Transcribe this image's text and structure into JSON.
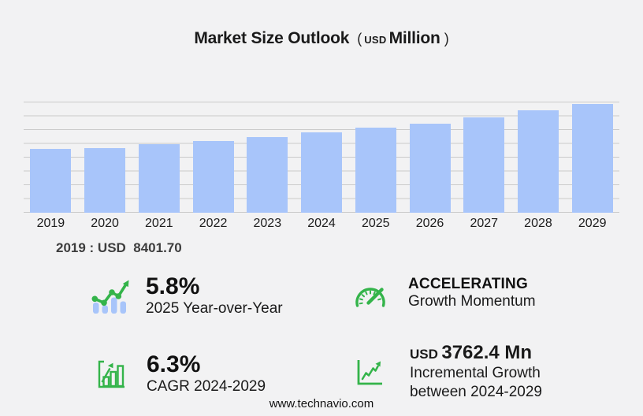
{
  "header": {
    "title": "Market Size Outlook",
    "unit_paren_open": "(",
    "unit_prefix": "USD",
    "unit": "Million",
    "unit_paren_close": ")"
  },
  "base_note": "2019 : USD  8401.70",
  "chart_data": {
    "type": "bar",
    "title": "Market Size Outlook (USD Million)",
    "unit": "USD Million",
    "categories": [
      "2019",
      "2020",
      "2021",
      "2022",
      "2023",
      "2024",
      "2025",
      "2026",
      "2027",
      "2028",
      "2029"
    ],
    "values": [
      8401.7,
      8500,
      8990,
      9450,
      9920,
      10530,
      11140,
      11750,
      12570,
      13460,
      14292
    ],
    "labeled_value_2019": "8401.70",
    "ylim": [
      0,
      14500
    ],
    "gridline_count": 9,
    "grid": "horizontal",
    "legend": "none",
    "bar_color": "#a8c5fa",
    "annotation": "2019 : USD  8401.70"
  },
  "stats": {
    "yoy": {
      "icon": "bar-trend-icon",
      "value": "5.8%",
      "label": "2025 Year-over-Year"
    },
    "momentum": {
      "icon": "gauge-icon",
      "value": "ACCELERATING",
      "label": "Growth Momentum"
    },
    "cagr": {
      "icon": "bar-growth-icon",
      "value": "6.3%",
      "label": "CAGR 2024-2029"
    },
    "incremental": {
      "icon": "line-chart-icon",
      "value_prefix": "USD",
      "value": "3762.4 Mn",
      "label_line1": "Incremental Growth",
      "label_line2": "between 2024-2029"
    }
  },
  "footer": {
    "url": "www.technavio.com"
  },
  "colors": {
    "background": "#f2f2f3",
    "bar_blue": "#a8c5fa",
    "accent_green": "#34b44a",
    "gridline": "#cacaca",
    "text": "#1a1a1a",
    "note_text": "#3d3d3d"
  }
}
